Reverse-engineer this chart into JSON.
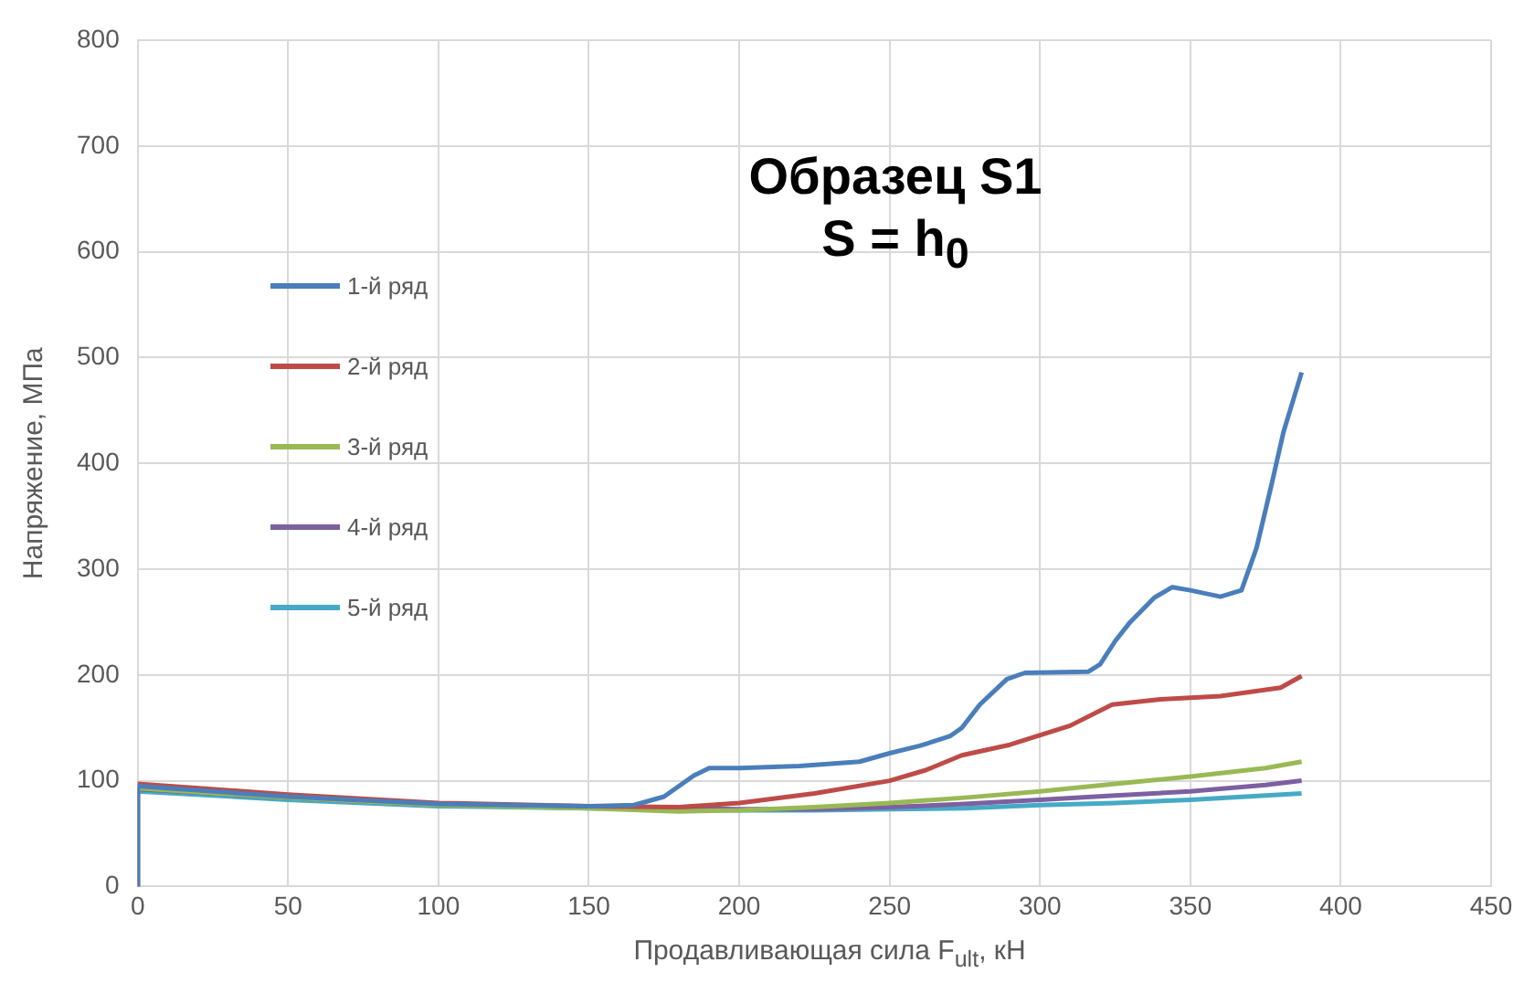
{
  "chart_data": {
    "type": "line",
    "title": "Образец S1",
    "subtitle": "S = h$_{0}$",
    "xlabel": "Продавливающая сила F$_{ult}$, кН",
    "ylabel": "Напряжение, МПа",
    "xlim": [
      0,
      450
    ],
    "xticks": [
      0,
      50,
      100,
      150,
      200,
      250,
      300,
      350,
      400,
      450
    ],
    "ylim": [
      0,
      800
    ],
    "yticks": [
      0,
      100,
      200,
      300,
      400,
      500,
      600,
      700,
      800
    ],
    "grid": true,
    "legend": "left",
    "marker": "none",
    "line_style": "solid",
    "series": [
      {
        "name": "1-й ряд",
        "color": "#4a7ebb",
        "x": [
          0,
          0,
          50,
          100,
          150,
          165,
          175,
          185,
          190,
          200,
          220,
          240,
          250,
          260,
          270,
          274,
          280,
          289,
          295,
          316,
          320,
          325,
          330,
          338,
          344,
          350,
          360,
          367,
          372,
          377,
          381,
          387
        ],
        "values": [
          0,
          95,
          85,
          78,
          76,
          77,
          85,
          105,
          112,
          112,
          114,
          118,
          126,
          133,
          142,
          150,
          172,
          196,
          202,
          203,
          210,
          232,
          250,
          273,
          283,
          280,
          274,
          280,
          320,
          380,
          430,
          486
        ]
      },
      {
        "name": "2-й ряд",
        "color": "#be4b48",
        "x": [
          0,
          0,
          50,
          100,
          150,
          180,
          200,
          225,
          250,
          262,
          274,
          290,
          310,
          324,
          340,
          360,
          380,
          387
        ],
        "values": [
          0,
          97,
          87,
          79,
          76,
          75,
          79,
          88,
          100,
          110,
          124,
          134,
          152,
          172,
          177,
          180,
          188,
          199
        ]
      },
      {
        "name": "3-й ряд",
        "color": "#98b954",
        "x": [
          0,
          0,
          50,
          100,
          150,
          180,
          200,
          225,
          250,
          275,
          300,
          325,
          350,
          375,
          387
        ],
        "values": [
          0,
          93,
          84,
          77,
          74,
          71,
          72,
          75,
          79,
          84,
          90,
          97,
          104,
          112,
          118
        ]
      },
      {
        "name": "4-й ряд",
        "color": "#7d60a0",
        "x": [
          0,
          0,
          50,
          100,
          150,
          180,
          200,
          225,
          250,
          275,
          300,
          325,
          350,
          375,
          387
        ],
        "values": [
          0,
          92,
          84,
          77,
          75,
          74,
          73,
          73,
          75,
          78,
          82,
          86,
          90,
          96,
          100
        ]
      },
      {
        "name": "5-й ряд",
        "color": "#46aac5",
        "x": [
          0,
          0,
          50,
          100,
          150,
          180,
          200,
          225,
          250,
          275,
          300,
          325,
          350,
          375,
          387
        ],
        "values": [
          0,
          90,
          82,
          76,
          74,
          73,
          72,
          72,
          73,
          74,
          77,
          79,
          82,
          86,
          88
        ]
      }
    ]
  }
}
